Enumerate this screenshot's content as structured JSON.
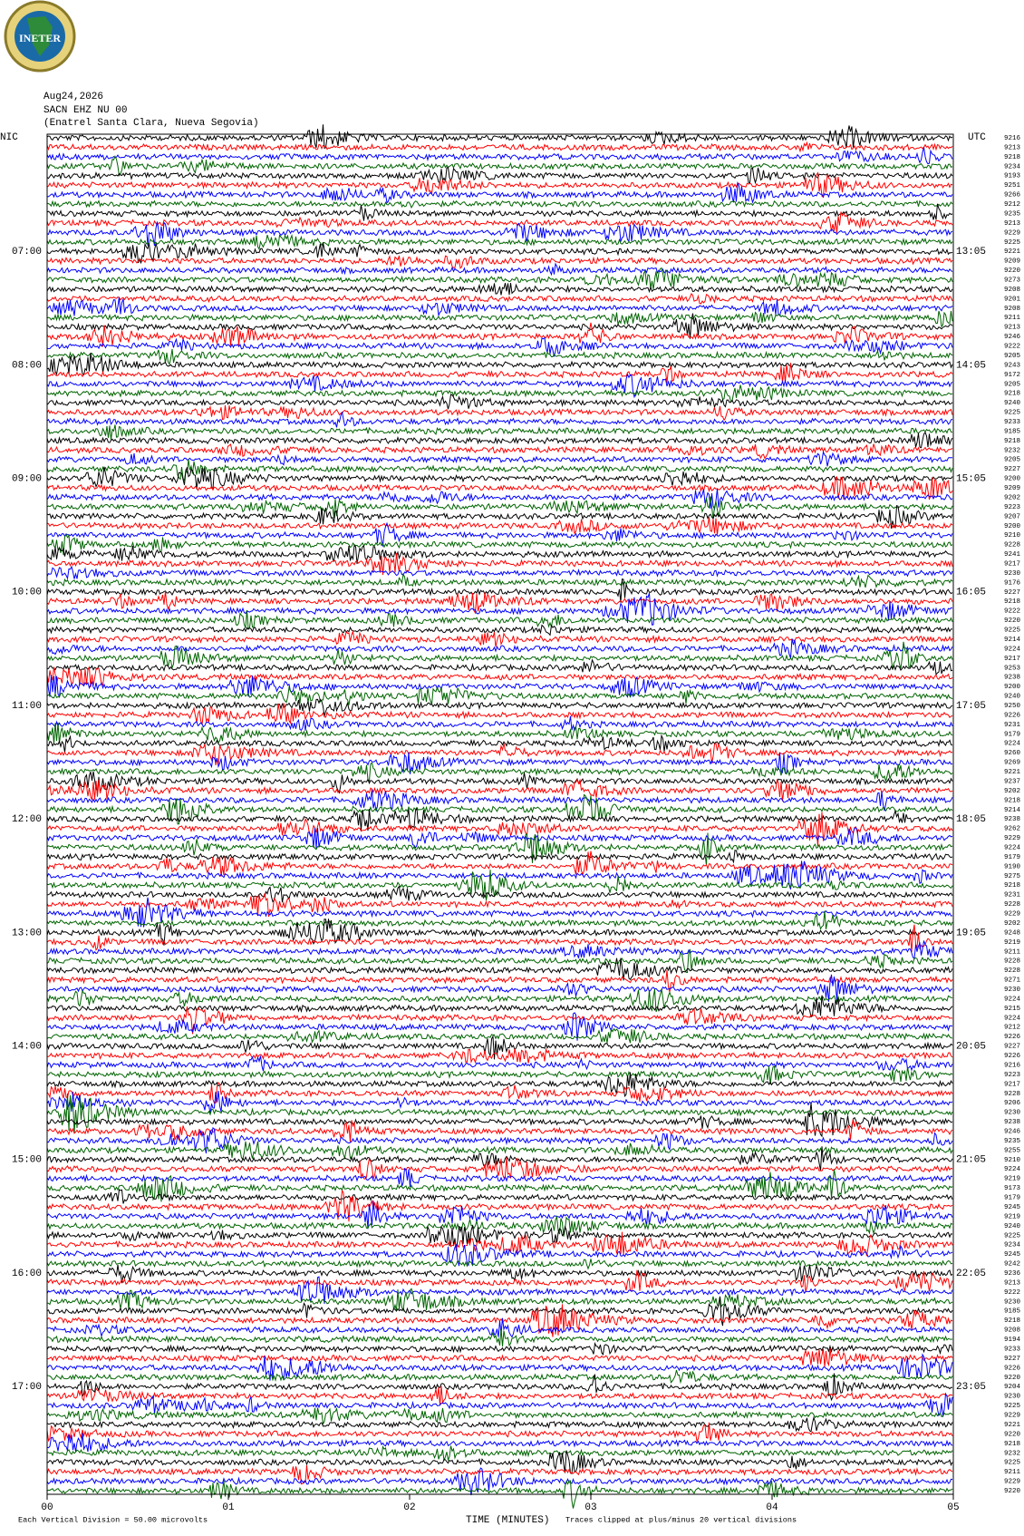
{
  "chart_data": {
    "type": "helicorder",
    "logo": "INETER",
    "date": "Aug24,2026",
    "station": "SACN EHZ NU 00",
    "location": "(Enatrel Santa Clara, Nueva Segovia)",
    "left_axis_label": "NIC",
    "right_axis_label": "UTC",
    "left_labels": [
      "07:00",
      "08:00",
      "09:00",
      "10:00",
      "11:00",
      "12:00",
      "13:00",
      "14:00",
      "15:00",
      "16:00",
      "17:00"
    ],
    "right_labels": [
      "13:05",
      "14:05",
      "15:05",
      "16:05",
      "17:05",
      "18:05",
      "19:05",
      "20:05",
      "21:05",
      "22:05",
      "23:05"
    ],
    "trace_ids": [
      9216,
      9213,
      9218,
      9234,
      9193,
      9251,
      9266,
      9212,
      9235,
      9213,
      9229,
      9225,
      9221,
      9209,
      9220,
      9273,
      9208,
      9201,
      9208,
      9211,
      9213,
      9246,
      9222,
      9205,
      9243,
      9172,
      9205,
      9218,
      9240,
      9225,
      9233,
      9185,
      9218,
      9232,
      9205,
      9227,
      9200,
      9209,
      9202,
      9223,
      9207,
      9200,
      9210,
      9228,
      9241,
      9217,
      9230,
      9176,
      9227,
      9218,
      9222,
      9220,
      9225,
      9214,
      9224,
      9217,
      9253,
      9238,
      9200,
      9240,
      9250,
      9226,
      9231,
      9179,
      9224,
      9260,
      9269,
      9221,
      9237,
      9202,
      9218,
      9214,
      9238,
      9262,
      9229,
      9224,
      9179,
      9190,
      9275,
      9218,
      9231,
      9228,
      9229,
      9202,
      9248,
      9219,
      9211,
      9228,
      9228,
      9271,
      9230,
      9224,
      9215,
      9224,
      9212,
      9226,
      9227,
      9226,
      9216,
      9223,
      9217,
      9228,
      9206,
      9230,
      9238,
      9246,
      9235,
      9255,
      9210,
      9224,
      9219,
      9173,
      9179,
      9245,
      9219,
      9240,
      9225,
      9234,
      9245,
      9242,
      9236,
      9213,
      9222,
      9230,
      9185,
      9218,
      9208,
      9194,
      9233,
      9227,
      9226,
      9220,
      9204,
      9230,
      9225,
      9229,
      9221,
      9220,
      9218,
      9232,
      9225,
      9211,
      9229,
      9220
    ],
    "trace_colors": [
      "#000000",
      "#ff0000",
      "#0000ff",
      "#006400"
    ],
    "xlabel": "TIME (MINUTES)",
    "xlim": [
      0,
      5
    ],
    "xticks": [
      {
        "value": 0,
        "label": "00"
      },
      {
        "value": 1,
        "label": "01"
      },
      {
        "value": 2,
        "label": "02"
      },
      {
        "value": 3,
        "label": "03"
      },
      {
        "value": 4,
        "label": "04"
      },
      {
        "value": 5,
        "label": "05"
      }
    ],
    "scale_note": "Each Vertical Division =   50.00 microvolts",
    "clip_note": "Traces clipped at plus/minus 20 vertical divisions"
  }
}
